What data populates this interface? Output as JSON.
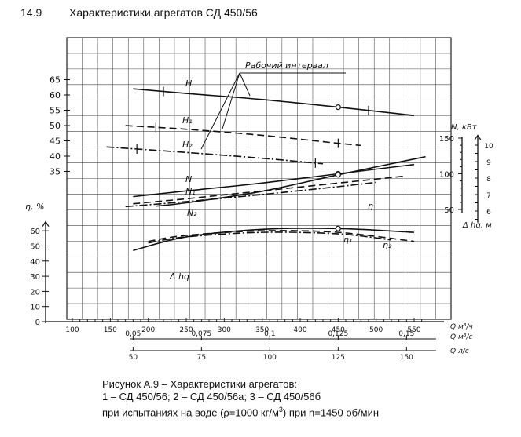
{
  "heading": {
    "number": "14.9",
    "title": "Характеристики агрегатов СД 450/56"
  },
  "caption": {
    "line1": "Рисунок А.9 – Характеристики агрегатов:",
    "line2": "1 – СД 450/56; 2 – СД 450/56а; 3 – СД 450/56б",
    "line3_pre": "при испытаниях на воде (ρ=1000 кг/м",
    "line3_sup": "3",
    "line3_post": ") при n=1450 об/мин"
  },
  "chart_data": {
    "type": "line",
    "annotation": "Рабочий интервал",
    "x_axes": {
      "q_m3h": {
        "label": "Q м³/ч",
        "ticks": [
          100,
          150,
          200,
          250,
          300,
          350,
          400,
          450,
          500,
          550
        ],
        "range": [
          100,
          550
        ]
      },
      "q_m3s": {
        "label": "Q м³/с",
        "ticks": [
          "0,05",
          "0,075",
          "0,1",
          "0,125",
          "0,15"
        ]
      },
      "q_ls": {
        "label": "Q л/с",
        "ticks": [
          "50",
          "75",
          "100",
          "125",
          "150"
        ]
      }
    },
    "y_axes": {
      "H": {
        "label": "",
        "ticks": [
          35,
          40,
          45,
          50,
          55,
          60,
          65
        ]
      },
      "N": {
        "label": "N, кВт",
        "ticks": [
          50,
          100,
          150
        ]
      },
      "eta": {
        "label": "η, %",
        "ticks": [
          0,
          10,
          20,
          30,
          40,
          50,
          60
        ]
      },
      "dh": {
        "label": "Δ hq, м",
        "ticks": [
          6,
          7,
          8,
          9,
          10
        ]
      }
    },
    "series": [
      {
        "name": "H",
        "axis": "H",
        "style": "solid",
        "x": [
          180,
          250,
          350,
          450,
          550
        ],
        "y": [
          62,
          60.5,
          58.5,
          56,
          53.3
        ],
        "op_x": 450
      },
      {
        "name": "H₁",
        "axis": "H",
        "style": "dashed",
        "x": [
          170,
          250,
          350,
          450,
          480
        ],
        "y": [
          50,
          48.8,
          46.8,
          44.2,
          43.5
        ],
        "op_x": 450
      },
      {
        "name": "H₂",
        "axis": "H",
        "style": "dashdot",
        "x": [
          145,
          250,
          350,
          430
        ],
        "y": [
          43,
          41.2,
          39.3,
          37.5
        ],
        "op_x": 420
      },
      {
        "name": "N",
        "axis": "N",
        "style": "solid",
        "x": [
          180,
          250,
          350,
          450,
          550
        ],
        "y": [
          68,
          76,
          87,
          100,
          113
        ]
      },
      {
        "name": "N₁",
        "axis": "N",
        "style": "dashed",
        "x": [
          180,
          250,
          350,
          450,
          540
        ],
        "y": [
          58,
          65,
          76,
          87,
          97
        ]
      },
      {
        "name": "N₂",
        "axis": "N",
        "style": "dashdot",
        "x": [
          170,
          250,
          350,
          450,
          500
        ],
        "y": [
          54,
          61,
          71,
          82,
          88
        ]
      },
      {
        "name": "η",
        "axis": "eta",
        "style": "solid",
        "x": [
          180,
          250,
          350,
          450,
          550
        ],
        "y": [
          47,
          56,
          61,
          61.5,
          59
        ]
      },
      {
        "name": "η₁",
        "axis": "eta",
        "style": "dashed",
        "x": [
          200,
          250,
          350,
          450,
          550
        ],
        "y": [
          53,
          57,
          60,
          59,
          53
        ]
      },
      {
        "name": "η₂",
        "axis": "eta",
        "style": "dashdot",
        "x": [
          200,
          250,
          350,
          450,
          520
        ],
        "y": [
          52,
          56,
          59,
          58,
          54
        ]
      },
      {
        "name": "Δ hq",
        "axis": "dh",
        "style": "solid",
        "x": [
          210,
          250,
          350,
          450,
          565
        ],
        "y": [
          6.3,
          6.5,
          7.2,
          8.2,
          9.3
        ]
      }
    ],
    "series_labels": [
      "H",
      "H₁",
      "H₂",
      "N",
      "N₁",
      "N₂",
      "η",
      "η₁",
      "η₂",
      "Δ hq"
    ]
  }
}
